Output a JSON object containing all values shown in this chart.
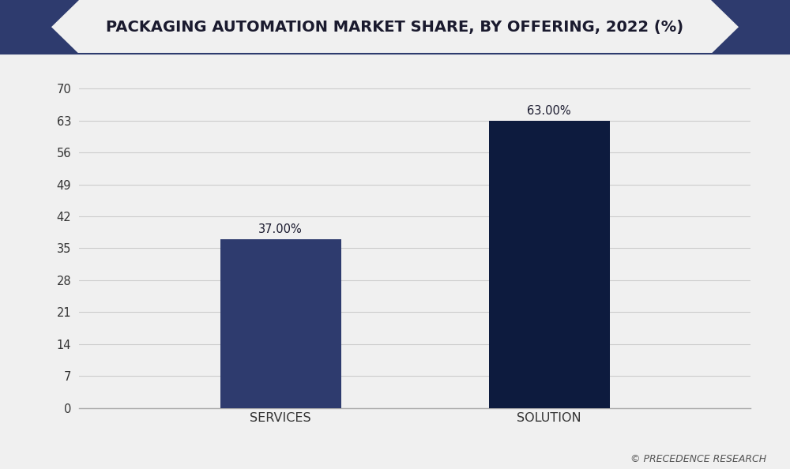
{
  "title": "PACKAGING AUTOMATION MARKET SHARE, BY OFFERING, 2022 (%)",
  "categories": [
    "SERVICES",
    "SOLUTION"
  ],
  "values": [
    37.0,
    63.0
  ],
  "bar_colors": [
    "#2e3b6e",
    "#0d1b3e"
  ],
  "value_labels": [
    "37.00%",
    "63.00%"
  ],
  "yticks": [
    0,
    7,
    14,
    21,
    28,
    35,
    42,
    49,
    56,
    63,
    70
  ],
  "ylim": [
    0,
    74
  ],
  "bg_color": "#f0f0f0",
  "plot_bg_color": "#f0f0f0",
  "title_bg_color": "#f5f3ee",
  "title_color": "#1a1a2e",
  "tick_color": "#333333",
  "grid_color": "#cccccc",
  "watermark": "© PRECEDENCE RESEARCH",
  "title_fontsize": 14,
  "bar_width": 0.18,
  "bar_positions": [
    0.3,
    0.7
  ],
  "xlim": [
    0,
    1
  ],
  "corner_color": "#2e3b6e",
  "border_color": "#2e3b6e"
}
